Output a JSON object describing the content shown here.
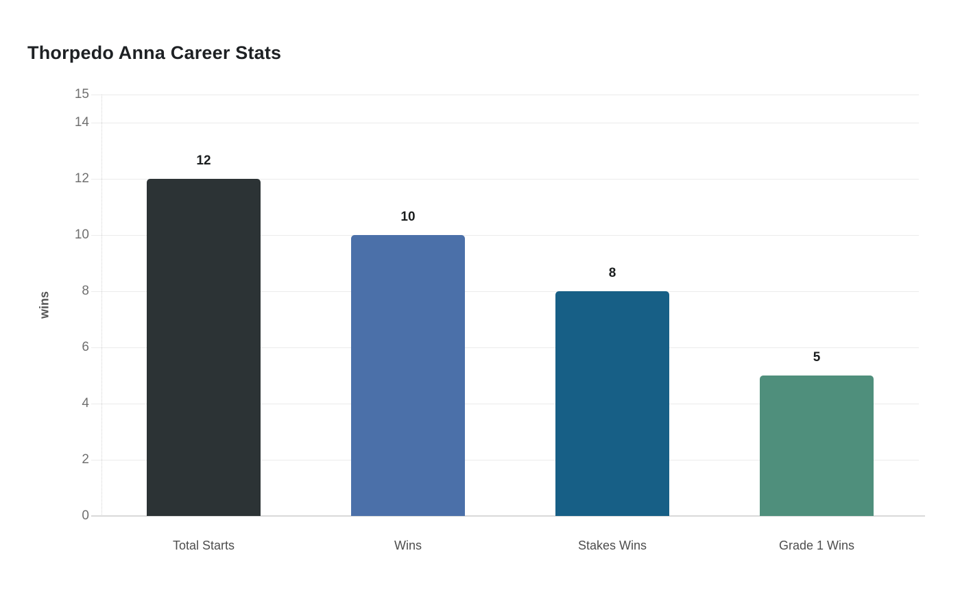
{
  "page": {
    "background_color": "#ffffff"
  },
  "chart_data": {
    "type": "bar",
    "title": "Thorpedo Anna Career Stats",
    "categories": [
      "Total Starts",
      "Wins",
      "Stakes Wins",
      "Grade 1 Wins"
    ],
    "values": [
      12,
      10,
      8,
      5
    ],
    "data_labels": [
      "12",
      "10",
      "8",
      "5"
    ],
    "bar_colors": [
      "#2c3335",
      "#4b70a9",
      "#175f86",
      "#4f8f7c"
    ],
    "xlabel": "",
    "ylabel": "wins",
    "ylim": [
      0,
      15
    ],
    "yticks": [
      0,
      2,
      4,
      6,
      8,
      10,
      12,
      14,
      15
    ],
    "grid": true,
    "gridline_color": "#ebebeb",
    "axis_line_color": "#d9d9d9",
    "tick_label_color": "#6f6f6f",
    "category_label_color": "#4d4d4d",
    "value_label_color": "#1a1d1e",
    "title_color": "#1e2124",
    "legend": false
  }
}
